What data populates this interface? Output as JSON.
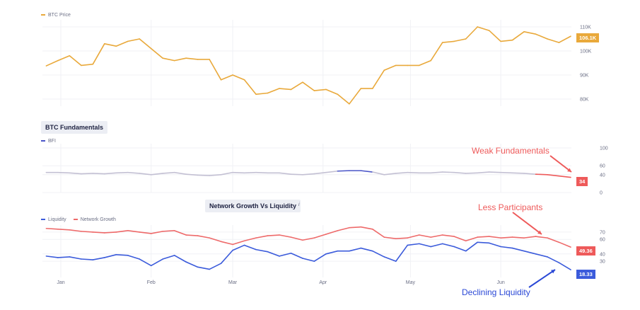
{
  "colors": {
    "price": "#e9a93b",
    "bfi": "#c3c0d3",
    "bfi_high": "#4a55c8",
    "bfi_low": "#ee5a5a",
    "liquidity": "#3b5bdb",
    "network_growth": "#ee6a6a",
    "grid": "#f0f1f5"
  },
  "chart_data": [
    {
      "type": "line",
      "title": "",
      "legend": [
        "BTC Price"
      ],
      "ylim_label_ticks": [
        "80K",
        "90K",
        "100K",
        "110K"
      ],
      "ylim": [
        76,
        114
      ],
      "series": [
        {
          "name": "BTC Price",
          "last_label": "106.1K",
          "x": [
            "2024-12-27",
            "2024-12-31",
            "2025-01-04",
            "2025-01-08",
            "2025-01-12",
            "2025-01-16",
            "2025-01-20",
            "2025-01-24",
            "2025-01-28",
            "2025-02-01",
            "2025-02-05",
            "2025-02-09",
            "2025-02-13",
            "2025-02-17",
            "2025-02-21",
            "2025-02-25",
            "2025-03-01",
            "2025-03-05",
            "2025-03-09",
            "2025-03-13",
            "2025-03-17",
            "2025-03-21",
            "2025-03-25",
            "2025-03-29",
            "2025-04-02",
            "2025-04-06",
            "2025-04-10",
            "2025-04-14",
            "2025-04-18",
            "2025-04-22",
            "2025-04-26",
            "2025-04-30",
            "2025-05-04",
            "2025-05-08",
            "2025-05-12",
            "2025-05-16",
            "2025-05-20",
            "2025-05-24",
            "2025-05-28",
            "2025-06-01",
            "2025-06-05",
            "2025-06-09",
            "2025-06-13",
            "2025-06-17",
            "2025-06-21",
            "2025-06-25"
          ],
          "values": [
            93.8,
            96,
            98,
            94,
            94.5,
            103,
            102,
            104,
            105,
            101,
            97,
            96,
            97,
            96.5,
            96.5,
            88,
            90,
            88,
            82,
            82.5,
            84.4,
            84,
            87,
            83.5,
            84,
            82,
            78,
            84.4,
            84.4,
            92,
            94,
            94,
            94,
            96,
            103.5,
            104,
            105,
            110,
            108.5,
            104,
            104.5,
            108,
            107,
            105,
            103.5,
            106.1
          ]
        }
      ]
    },
    {
      "type": "line",
      "title": "BTC Fundamentals",
      "legend": [
        "BFI"
      ],
      "ticks": [
        "0",
        "40",
        "60",
        "100"
      ],
      "ylim": [
        0,
        100
      ],
      "series": [
        {
          "name": "BFI",
          "last_label": "34",
          "values": [
            45,
            45,
            44,
            42,
            43,
            42,
            44,
            45,
            43,
            40,
            43,
            45,
            41,
            39,
            38,
            40,
            45,
            44,
            45,
            44,
            44,
            41,
            40,
            42,
            45,
            48,
            49,
            49,
            46,
            40,
            43,
            45,
            44,
            44,
            46,
            45,
            43,
            44,
            46,
            45,
            44,
            43,
            41,
            40,
            37,
            34
          ]
        }
      ]
    },
    {
      "type": "line",
      "title": "Network Growth Vs Liquidity",
      "subtitle_mark": "i",
      "legend": [
        "Liquidity",
        "Network Growth"
      ],
      "ticks": [
        "30",
        "40",
        "60",
        "70"
      ],
      "ylim": [
        0,
        80
      ],
      "x_ticks": [
        "Jan",
        "Feb",
        "Mar",
        "Apr",
        "May",
        "Jun"
      ],
      "series": [
        {
          "name": "Network Growth",
          "last_label": "49.36",
          "values": [
            75,
            74,
            73,
            71,
            70,
            69,
            70,
            72,
            70,
            68,
            71,
            72,
            66,
            65,
            62,
            57,
            53,
            58,
            62,
            65,
            66,
            63,
            59,
            62,
            67,
            72,
            76,
            77,
            74,
            63,
            61,
            62,
            66,
            63,
            66,
            64,
            58,
            63,
            64,
            62,
            63,
            62,
            64,
            62,
            56,
            49.36
          ]
        },
        {
          "name": "Liquidity",
          "last_label": "18.33",
          "values": [
            37,
            35,
            36,
            33,
            32,
            35,
            39,
            38,
            33,
            24,
            33,
            38,
            29,
            22,
            19,
            27,
            45,
            52,
            46,
            43,
            37,
            41,
            34,
            30,
            40,
            44,
            44,
            48,
            44,
            36,
            30,
            52,
            54,
            50,
            54,
            50,
            44,
            56,
            55,
            50,
            48,
            44,
            40,
            36,
            28,
            18.33
          ]
        }
      ]
    }
  ],
  "annotations": {
    "weak": "Weak Fundamentals",
    "less": "Less Participants",
    "declining": "Declining Liquidity"
  }
}
